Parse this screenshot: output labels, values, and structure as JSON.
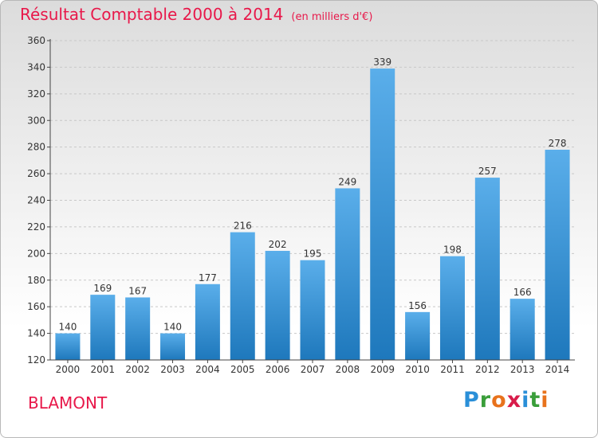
{
  "header": {
    "title": "Résultat Comptable 2000 à 2014",
    "subtitle": "(en milliers d'€)"
  },
  "commune": "BLAMONT",
  "logo": {
    "text": "Proxiti",
    "letters": [
      {
        "char": "P",
        "color": "#2a8fd8"
      },
      {
        "char": "r",
        "color": "#3a9e3a"
      },
      {
        "char": "o",
        "color": "#e8721c"
      },
      {
        "char": "x",
        "color": "#d81c4a"
      },
      {
        "char": "i",
        "color": "#2a8fd8"
      },
      {
        "char": "t",
        "color": "#3a9e3a"
      },
      {
        "char": "i",
        "color": "#e8721c"
      }
    ]
  },
  "colors": {
    "title": "#e8184a",
    "bar_top": "#5aaeea",
    "bar_bottom": "#1e78bc",
    "grid": "#c8c8c8",
    "axis": "#444444"
  },
  "chart_data": {
    "type": "bar",
    "title": "Résultat Comptable 2000 à 2014",
    "subtitle": "(en milliers d'€)",
    "xlabel": "",
    "ylabel": "",
    "categories": [
      "2000",
      "2001",
      "2002",
      "2003",
      "2004",
      "2005",
      "2006",
      "2007",
      "2008",
      "2009",
      "2010",
      "2011",
      "2012",
      "2013",
      "2014"
    ],
    "values": [
      140,
      169,
      167,
      140,
      177,
      216,
      202,
      195,
      249,
      339,
      156,
      198,
      257,
      166,
      278
    ],
    "ylim": [
      120,
      360
    ],
    "yticks": [
      120,
      140,
      160,
      180,
      200,
      220,
      240,
      260,
      280,
      300,
      320,
      340,
      360
    ],
    "grid": true,
    "legend": "none"
  }
}
